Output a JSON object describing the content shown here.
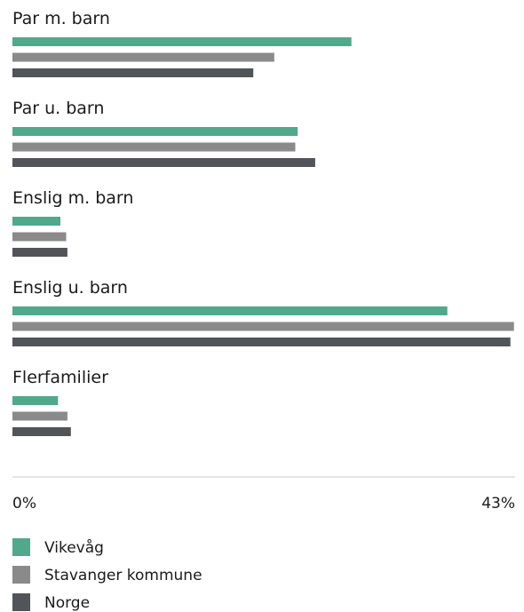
{
  "chart_data": {
    "type": "bar",
    "orientation": "horizontal",
    "categories": [
      "Par m. barn",
      "Par u. barn",
      "Enslig m. barn",
      "Enslig u. barn",
      "Flerfamilier"
    ],
    "series": [
      {
        "name": "Vikevåg",
        "color": "#4fa98a",
        "values": [
          29.0,
          24.4,
          4.1,
          37.2,
          3.9
        ]
      },
      {
        "name": "Stavanger kommune",
        "color": "#8a8a8a",
        "values": [
          22.4,
          24.2,
          4.6,
          42.9,
          4.7
        ]
      },
      {
        "name": "Norge",
        "color": "#515559",
        "values": [
          20.6,
          25.9,
          4.7,
          42.6,
          5.0
        ]
      }
    ],
    "xlim": [
      0,
      43
    ],
    "tick_labels": [
      "0%",
      "43%"
    ],
    "grid": false,
    "legend_placement": "bottom-left"
  }
}
